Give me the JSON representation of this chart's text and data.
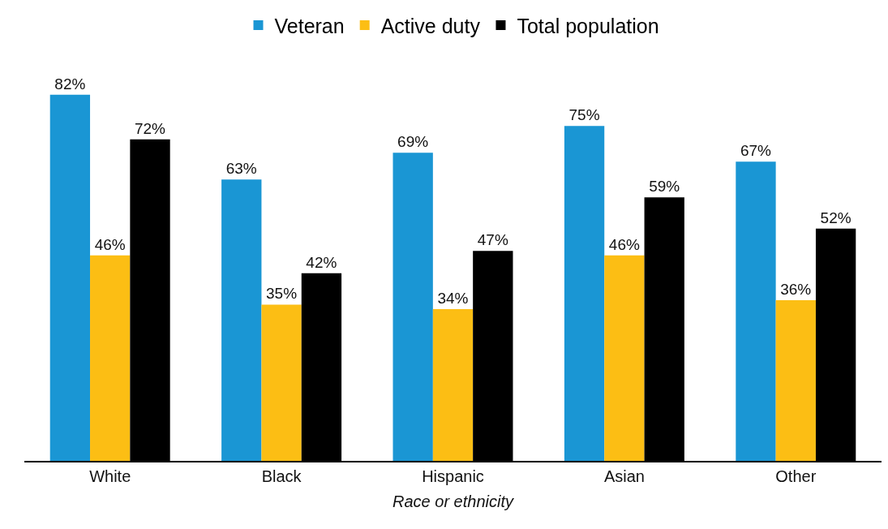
{
  "chart_data": {
    "type": "bar",
    "xlabel": "Race or ethnicity",
    "categories": [
      "White",
      "Black",
      "Hispanic",
      "Asian",
      "Other"
    ],
    "series": [
      {
        "name": "Veteran",
        "color": "#1a96d4",
        "values": [
          82,
          63,
          69,
          75,
          67
        ],
        "value_labels": [
          "82%",
          "63%",
          "69%",
          "75%",
          "67%"
        ]
      },
      {
        "name": "Active duty",
        "color": "#fcbe14",
        "values": [
          46,
          35,
          34,
          46,
          36
        ],
        "value_labels": [
          "46%",
          "35%",
          "34%",
          "46%",
          "36%"
        ]
      },
      {
        "name": "Total population",
        "color": "#000000",
        "values": [
          72,
          42,
          47,
          59,
          52
        ],
        "value_labels": [
          "72%",
          "42%",
          "47%",
          "59%",
          "52%"
        ]
      }
    ],
    "tick_labels": "x",
    "legend": "top"
  }
}
